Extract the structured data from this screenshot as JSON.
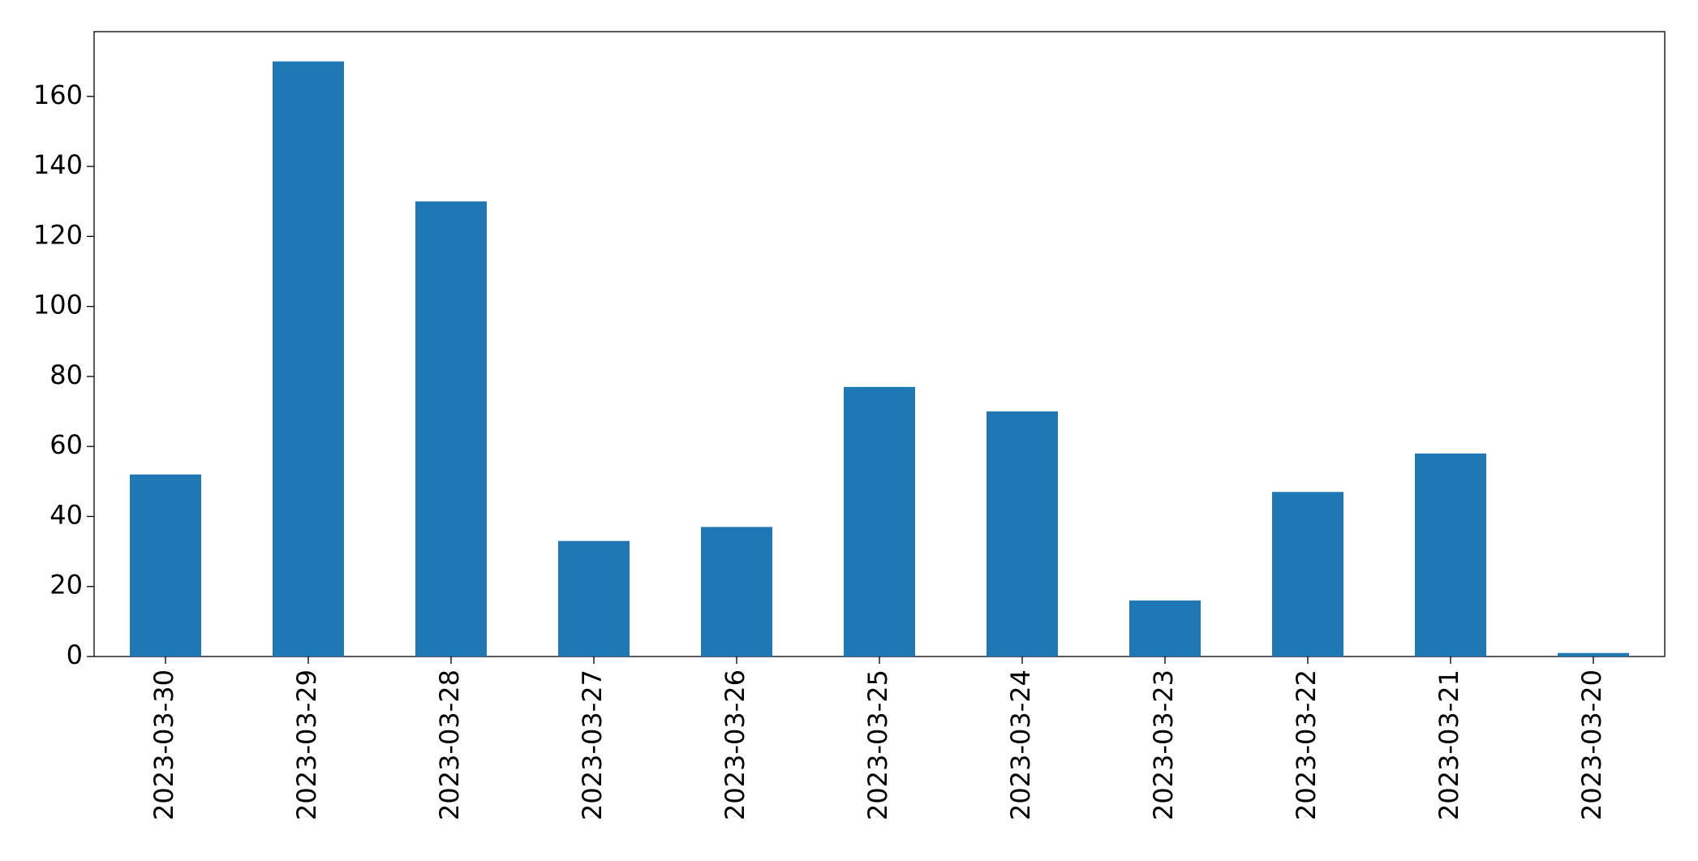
{
  "chart_data": {
    "type": "bar",
    "categories": [
      "2023-03-30",
      "2023-03-29",
      "2023-03-28",
      "2023-03-27",
      "2023-03-26",
      "2023-03-25",
      "2023-03-24",
      "2023-03-23",
      "2023-03-22",
      "2023-03-21",
      "2023-03-20"
    ],
    "values": [
      52,
      170,
      130,
      33,
      37,
      77,
      70,
      16,
      47,
      58,
      1
    ],
    "color": "#1f77b4",
    "ylim": [
      0,
      178.5
    ],
    "yticks": [
      0,
      20,
      40,
      60,
      80,
      100,
      120,
      140,
      160
    ],
    "grid": false
  }
}
